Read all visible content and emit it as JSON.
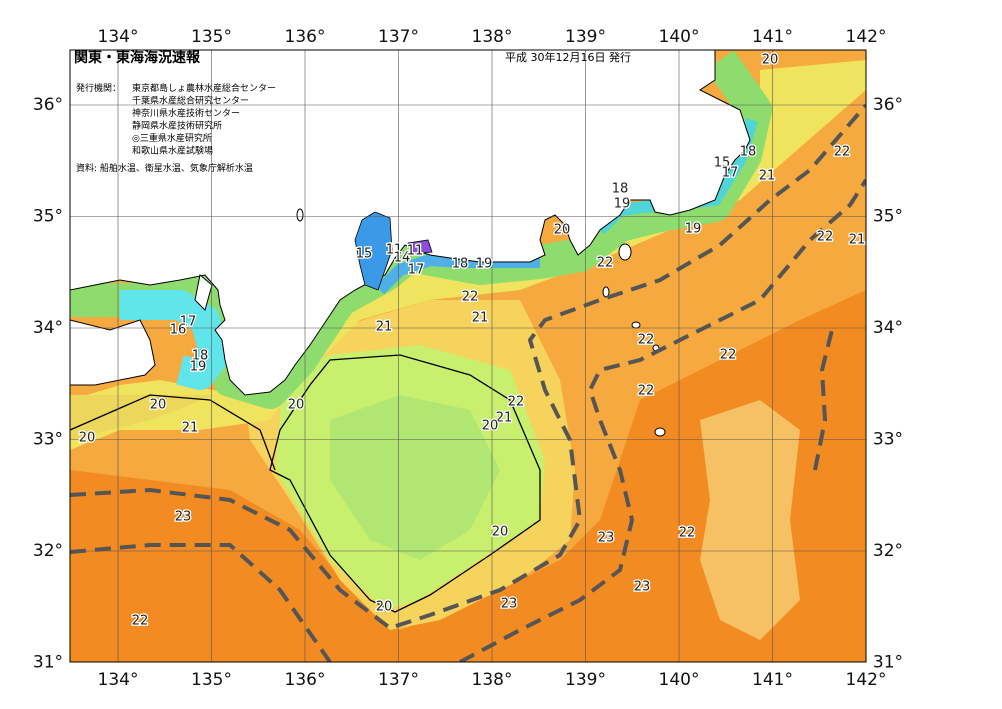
{
  "header": {
    "title": "関東・東海海況速報",
    "date": "平成 30年12月16日 発行"
  },
  "issuers": {
    "label": "発行機関：",
    "names": [
      "東京都島しょ農林水産総合センター",
      "千葉県水産総合研究センター",
      "神奈川県水産技術センター",
      "静岡県水産技術研究所",
      "◎三重県水産研究所",
      "和歌山県水産試験場"
    ]
  },
  "source": "資料: 船舶水温、衛星水温、気象庁解析水温",
  "lon_labels": [
    "134°",
    "135°",
    "136°",
    "137°",
    "138°",
    "139°",
    "140°",
    "141°",
    "142°"
  ],
  "lat_labels": [
    "36°",
    "35°",
    "34°",
    "33°",
    "32°",
    "31°"
  ],
  "contour_labels": [
    20,
    22,
    18,
    15,
    17,
    21,
    18,
    19,
    19,
    22,
    21,
    20,
    22,
    15,
    11,
    14,
    11,
    17,
    18,
    19,
    22,
    21,
    21,
    17,
    16,
    18,
    19,
    22,
    22,
    22,
    20,
    20,
    22,
    21,
    20,
    21,
    20,
    23,
    20,
    22,
    23,
    23,
    23,
    20,
    22
  ]
}
